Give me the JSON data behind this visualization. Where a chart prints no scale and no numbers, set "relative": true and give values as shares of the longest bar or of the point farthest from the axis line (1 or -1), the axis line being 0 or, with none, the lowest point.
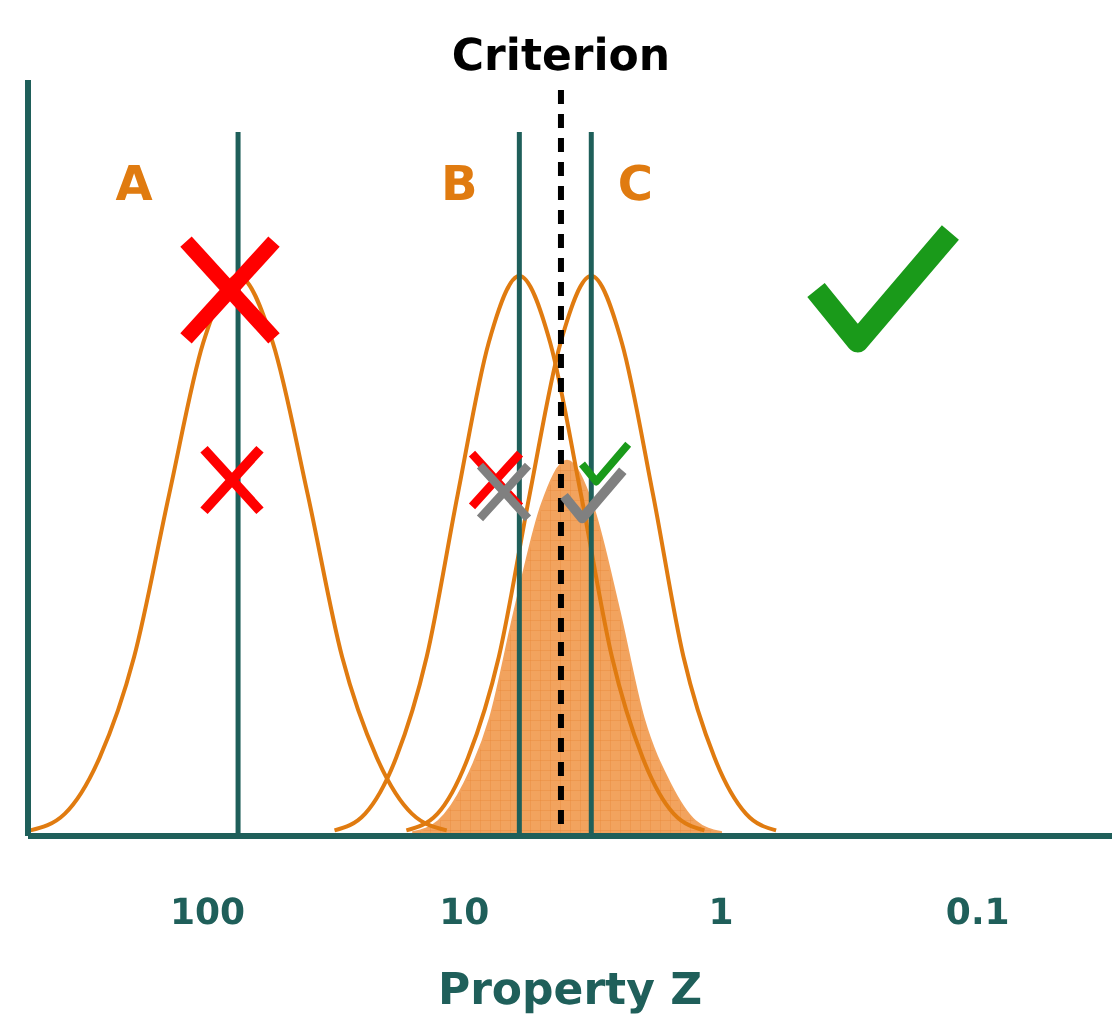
{
  "chart_data": {
    "type": "line",
    "relative": true,
    "log": "x",
    "xlim": [
      500,
      0.03
    ],
    "xticks": [
      100,
      10,
      1,
      0.1
    ],
    "xlabel": "Property Z",
    "grid": false,
    "marker": "none",
    "series": [
      {
        "type": "area",
        "color": "#f2a35e",
        "x": [
          1.0,
          1.26,
          1.58,
          2.0,
          2.51,
          3.16,
          3.98,
          5.01,
          6.31,
          7.94,
          10,
          12.6,
          15.8
        ],
        "values": [
          0.007,
          0.027,
          0.094,
          0.21,
          0.41,
          0.59,
          0.67,
          0.59,
          0.41,
          0.21,
          0.094,
          0.027,
          0.007
        ]
      },
      {
        "name": "A",
        "color": "#e07b10",
        "x": [
          11.7,
          16,
          21.9,
          29.9,
          40.7,
          55.6,
          76,
          104,
          141,
          193,
          263,
          359,
          490
        ],
        "values": [
          0.01,
          0.04,
          0.14,
          0.32,
          0.61,
          0.88,
          1,
          0.88,
          0.61,
          0.32,
          0.14,
          0.04,
          0.01
        ]
      },
      {
        "name": "B",
        "color": "#e07b10",
        "x": [
          1.16,
          1.53,
          2.02,
          2.66,
          3.51,
          4.62,
          6.1,
          8.04,
          10.6,
          14.0,
          18.4,
          24.3,
          32.0
        ],
        "values": [
          0.01,
          0.04,
          0.14,
          0.32,
          0.61,
          0.88,
          1,
          0.88,
          0.61,
          0.32,
          0.14,
          0.04,
          0.01
        ]
      },
      {
        "name": "C",
        "color": "#e07b10",
        "x": [
          0.61,
          0.8,
          1.06,
          1.4,
          1.84,
          2.43,
          3.2,
          4.22,
          5.56,
          7.33,
          9.66,
          12.7,
          16.8
        ],
        "values": [
          0.01,
          0.04,
          0.14,
          0.32,
          0.61,
          0.88,
          1,
          0.88,
          0.61,
          0.32,
          0.14,
          0.04,
          0.01
        ]
      }
    ],
    "ref_lines": [
      {
        "axis": "x",
        "value": 76,
        "color": "#1f5f5a"
      },
      {
        "axis": "x",
        "value": 6.1,
        "color": "#1f5f5a"
      },
      {
        "axis": "x",
        "value": 3.2,
        "color": "#1f5f5a"
      },
      {
        "axis": "x",
        "value": 4.2,
        "label": "Criterion",
        "line_style": "dashed",
        "color": "#000000"
      }
    ]
  }
}
